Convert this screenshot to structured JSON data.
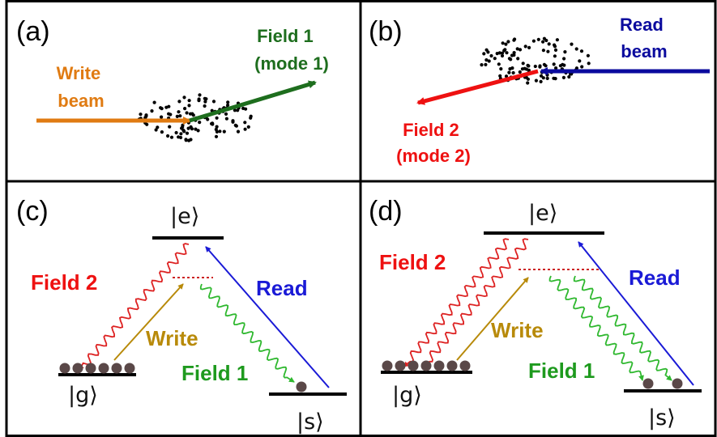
{
  "colors": {
    "write": "#e07b12",
    "field1": "#1e6e1e",
    "read": "#0b0b9e",
    "field2": "#ee1111",
    "write_transition": "#b88a0a",
    "field1_transition": "#2fb82f",
    "field2_transition": "#dd2222",
    "read_transition": "#1a1ad6",
    "atom": "#5a4848",
    "detuning": "#cc2222"
  },
  "panels": {
    "a": {
      "label": "(a)",
      "write_beam": [
        "Write",
        "beam"
      ],
      "field1": [
        "Field 1",
        "(mode 1)"
      ]
    },
    "b": {
      "label": "(b)",
      "read_beam": [
        "Read",
        "beam"
      ],
      "field2": [
        "Field 2",
        "(mode 2)"
      ]
    },
    "c": {
      "label": "(c)",
      "level_e": "|e⟩",
      "level_g": "|g⟩",
      "level_s": "|s⟩",
      "field2": "Field 2",
      "write": "Write",
      "read": "Read",
      "field1": "Field 1",
      "atoms_g": 6,
      "atoms_s": 1
    },
    "d": {
      "label": "(d)",
      "level_e": "|e⟩",
      "level_g": "|g⟩",
      "level_s": "|s⟩",
      "field2": "Field 2",
      "write": "Write",
      "read": "Read",
      "field1": "Field 1",
      "atoms_g": 7,
      "atoms_s": 2
    }
  }
}
